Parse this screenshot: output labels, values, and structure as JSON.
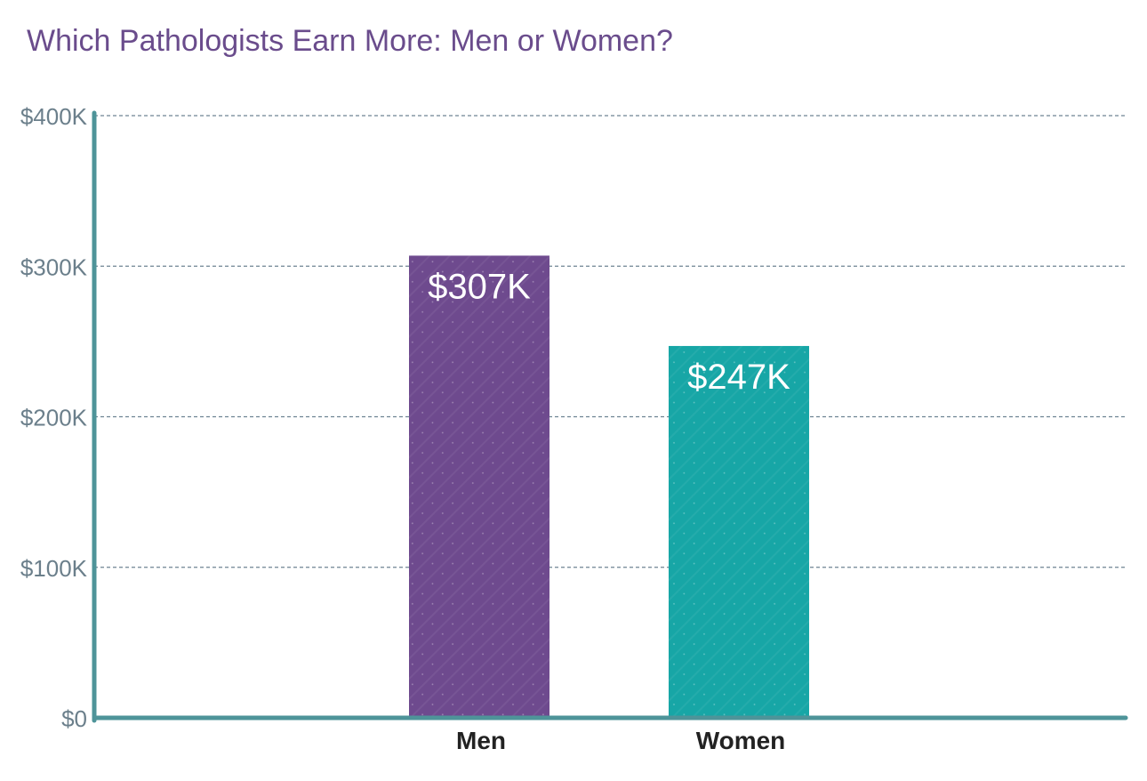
{
  "chart_data": {
    "type": "bar",
    "title": "Which Pathologists Earn More: Men or Women?",
    "xlabel": "",
    "ylabel": "",
    "categories": [
      "Men",
      "Women"
    ],
    "values": [
      307,
      247
    ],
    "data_labels": [
      "$307K",
      "$247K"
    ],
    "yticks": [
      0,
      100,
      200,
      300,
      400
    ],
    "ytick_labels": [
      "$0",
      "$100K",
      "$200K",
      "$300K",
      "$400K"
    ],
    "ylim": [
      0,
      400
    ],
    "grid": true,
    "legend": "none",
    "bar_colors": [
      "#6e4a8e",
      "#17a6a6"
    ]
  },
  "colors": {
    "title": "#6a4c8c",
    "axis": "#4e9499",
    "grid": "#6e8493",
    "tick_text": "#6b7f8b",
    "category_text": "#222222",
    "value_text": "#ffffff"
  }
}
